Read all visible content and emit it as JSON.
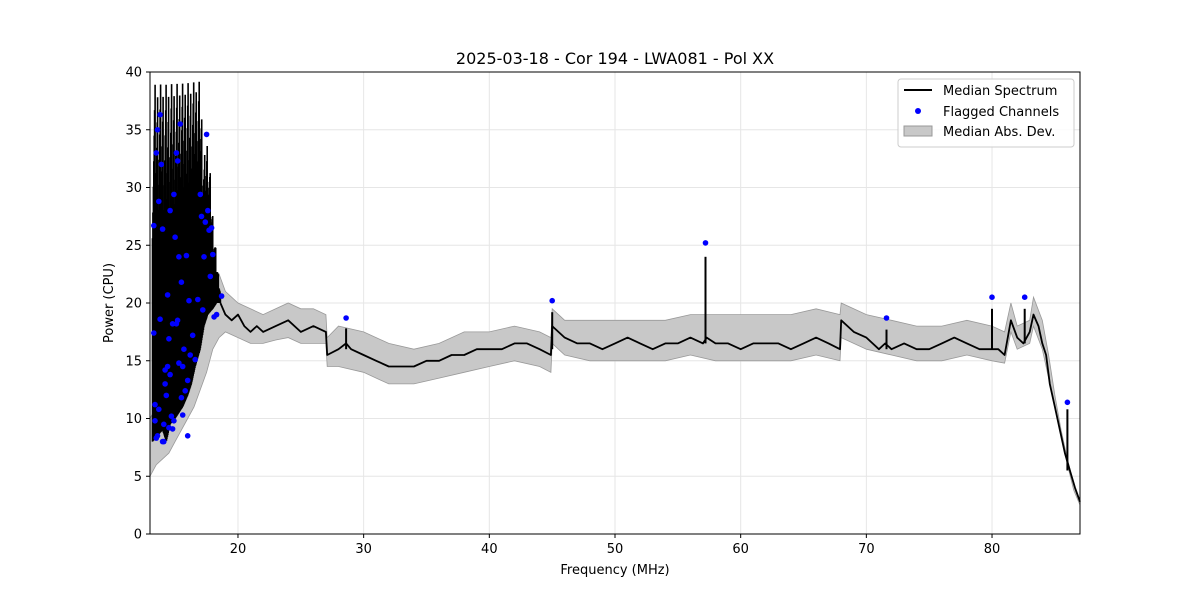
{
  "chart_data": {
    "type": "line",
    "title": "2025-03-18 - Cor 194 - LWA081 - Pol XX",
    "xlabel": "Frequency (MHz)",
    "ylabel": "Power (CPU)",
    "xlim": [
      13,
      87
    ],
    "ylim": [
      0,
      40
    ],
    "xticks": [
      20,
      30,
      40,
      50,
      60,
      70,
      80
    ],
    "yticks": [
      0,
      5,
      10,
      15,
      20,
      25,
      30,
      35,
      40
    ],
    "grid": true,
    "legend_position": "top-right",
    "legend": [
      "Median Spectrum",
      "Flagged Channels",
      "Median Abs. Dev."
    ],
    "colors": {
      "median": "#000000",
      "flagged": "#0000ff",
      "band": "#c8c8c8",
      "band_edge": "#999999"
    },
    "series": [
      {
        "name": "Median Spectrum",
        "kind": "line",
        "x": [
          18.6,
          19.0,
          19.5,
          20.0,
          20.5,
          21.0,
          21.5,
          22.0,
          23.0,
          24.0,
          25.0,
          26.0,
          27.0,
          27.1,
          28.0,
          28.6,
          29.0,
          30.0,
          31.0,
          32.0,
          33.0,
          34.0,
          35.0,
          36.0,
          37.0,
          38.0,
          39.0,
          40.0,
          41.0,
          42.0,
          43.0,
          44.0,
          44.9,
          45.0,
          46.0,
          47.0,
          48.0,
          49.0,
          50.0,
          51.0,
          52.0,
          53.0,
          54.0,
          55.0,
          56.0,
          57.0,
          57.3,
          58.0,
          59.0,
          60.0,
          61.0,
          62.0,
          63.0,
          64.0,
          65.0,
          66.0,
          67.0,
          67.9,
          68.0,
          69.0,
          70.0,
          71.0,
          71.5,
          72.0,
          73.0,
          74.0,
          75.0,
          76.0,
          77.0,
          78.0,
          79.0,
          80.0,
          80.5,
          81.0,
          81.5,
          82.0,
          82.5,
          83.0,
          83.3,
          83.7,
          84.0,
          84.3,
          84.6,
          85.0,
          85.4,
          85.8,
          86.2,
          86.6,
          87.0
        ],
        "y": [
          20.0,
          19.0,
          18.5,
          19.0,
          18.0,
          17.5,
          18.0,
          17.5,
          18.0,
          18.5,
          17.5,
          18.0,
          17.5,
          15.5,
          16.0,
          16.5,
          16.0,
          15.5,
          15.0,
          14.5,
          14.5,
          14.5,
          15.0,
          15.0,
          15.5,
          15.5,
          16.0,
          16.0,
          16.0,
          16.5,
          16.5,
          16.0,
          15.5,
          18.0,
          17.0,
          16.5,
          16.5,
          16.0,
          16.5,
          17.0,
          16.5,
          16.0,
          16.5,
          16.5,
          17.0,
          16.5,
          17.0,
          16.5,
          16.5,
          16.0,
          16.5,
          16.5,
          16.5,
          16.0,
          16.5,
          17.0,
          16.5,
          16.0,
          18.5,
          17.5,
          17.0,
          16.0,
          16.5,
          16.0,
          16.5,
          16.0,
          16.0,
          16.5,
          17.0,
          16.5,
          16.0,
          16.0,
          16.0,
          15.5,
          18.5,
          17.0,
          16.5,
          17.5,
          19.0,
          18.0,
          16.5,
          15.5,
          13.0,
          11.0,
          9.0,
          7.0,
          5.5,
          4.0,
          2.8
        ]
      },
      {
        "name": "Median Spectrum spikes",
        "kind": "spikes",
        "x": [
          28.6,
          45.0,
          57.2,
          71.6,
          80.0,
          82.6,
          86.0
        ],
        "y0": [
          16.0,
          16.0,
          16.5,
          16.0,
          16.0,
          16.5,
          5.5
        ],
        "y": [
          17.8,
          19.2,
          24.0,
          17.7,
          19.5,
          19.5,
          10.8
        ]
      },
      {
        "name": "Median Spectrum low-frequency RFI",
        "kind": "band_lines",
        "x": [
          13.2,
          13.6,
          14.0,
          14.3,
          14.6,
          15.0,
          15.3,
          15.6,
          16.0,
          16.3,
          16.6,
          17.0,
          17.3,
          17.6,
          18.0,
          18.3,
          18.6
        ],
        "low": [
          8.0,
          8.5,
          9.0,
          8.0,
          9.5,
          10.0,
          10.5,
          11.0,
          12.0,
          13.0,
          14.5,
          16.0,
          18.0,
          19.0,
          19.5,
          20.0,
          20.0
        ],
        "high": [
          40,
          40,
          40,
          40,
          40,
          40,
          40,
          40,
          40,
          40,
          40,
          40,
          33,
          35,
          28,
          24,
          21
        ]
      },
      {
        "name": "Median Abs. Dev.",
        "kind": "band",
        "x": [
          13.0,
          13.5,
          14.0,
          14.5,
          15.0,
          15.5,
          16.0,
          16.5,
          17.0,
          17.5,
          18.0,
          18.5,
          19.0,
          20.0,
          21.0,
          22.0,
          23.0,
          24.0,
          25.0,
          26.0,
          27.0,
          27.1,
          28.0,
          30.0,
          32.0,
          34.0,
          36.0,
          38.0,
          40.0,
          42.0,
          44.0,
          44.9,
          45.0,
          46.0,
          48.0,
          50.0,
          52.0,
          54.0,
          56.0,
          58.0,
          60.0,
          62.0,
          64.0,
          66.0,
          67.9,
          68.0,
          70.0,
          72.0,
          74.0,
          76.0,
          78.0,
          80.0,
          81.0,
          81.5,
          82.0,
          83.0,
          83.3,
          84.0,
          84.5,
          85.0,
          85.5,
          86.0,
          86.5,
          87.0
        ],
        "lower": [
          5.0,
          6.0,
          6.5,
          7.0,
          8.0,
          9.0,
          10.0,
          11.0,
          12.5,
          14.0,
          16.0,
          17.0,
          17.5,
          17.0,
          16.5,
          16.5,
          16.8,
          17.0,
          16.5,
          16.5,
          16.5,
          14.5,
          14.5,
          14.0,
          13.0,
          13.0,
          13.5,
          14.0,
          14.5,
          15.0,
          14.5,
          14.0,
          16.5,
          15.5,
          15.0,
          15.0,
          15.0,
          15.0,
          15.5,
          15.0,
          15.0,
          15.0,
          15.0,
          15.5,
          15.0,
          17.0,
          16.0,
          15.5,
          15.0,
          15.0,
          15.5,
          15.0,
          14.8,
          17.5,
          16.0,
          16.5,
          18.0,
          16.0,
          13.5,
          11.0,
          8.5,
          6.0,
          3.8,
          2.5
        ],
        "upper": [
          10.0,
          11.0,
          12.0,
          13.0,
          14.0,
          15.0,
          16.0,
          17.0,
          18.5,
          20.0,
          21.5,
          22.5,
          21.0,
          20.0,
          19.5,
          19.0,
          19.5,
          20.0,
          19.5,
          19.5,
          19.0,
          17.0,
          18.0,
          17.5,
          16.5,
          16.0,
          16.5,
          17.5,
          17.5,
          18.0,
          17.5,
          17.0,
          19.5,
          18.5,
          18.5,
          18.5,
          18.5,
          18.5,
          19.0,
          19.0,
          19.0,
          19.0,
          19.0,
          19.5,
          19.0,
          20.0,
          19.0,
          18.5,
          18.0,
          18.0,
          18.5,
          18.0,
          17.5,
          20.0,
          18.0,
          18.5,
          20.5,
          18.5,
          15.5,
          12.0,
          9.0,
          6.5,
          4.3,
          2.8
        ]
      },
      {
        "name": "Flagged Channels",
        "kind": "scatter",
        "x": [
          13.3,
          13.4,
          13.5,
          13.5,
          13.6,
          13.7,
          13.8,
          13.8,
          13.9,
          14.0,
          14.0,
          14.1,
          14.2,
          14.2,
          14.3,
          14.4,
          14.4,
          14.5,
          14.6,
          14.6,
          14.7,
          14.8,
          14.9,
          14.9,
          15.0,
          15.1,
          15.1,
          15.2,
          15.3,
          15.3,
          15.4,
          15.5,
          15.5,
          15.6,
          15.7,
          15.8,
          15.9,
          16.0,
          16.1,
          16.2,
          16.4,
          16.6,
          16.8,
          17.0,
          17.1,
          17.2,
          17.3,
          17.4,
          17.5,
          17.6,
          17.7,
          17.8,
          17.9,
          18.0,
          18.1,
          18.3,
          18.7,
          13.3,
          13.4,
          13.6,
          13.7,
          14.1,
          14.5,
          14.8,
          15.2,
          15.6,
          16.0,
          28.6,
          45.0,
          57.2,
          71.6,
          80.0,
          82.6,
          86.0
        ],
        "y": [
          26.7,
          11.2,
          8.3,
          33.0,
          35.0,
          28.8,
          36.3,
          18.6,
          32.0,
          8.0,
          26.4,
          9.5,
          14.2,
          13.0,
          12.0,
          20.7,
          14.5,
          9.2,
          28.0,
          13.8,
          10.2,
          18.2,
          29.4,
          9.8,
          25.7,
          18.2,
          33.0,
          32.3,
          14.8,
          24.0,
          35.5,
          21.8,
          11.8,
          10.3,
          16.0,
          12.4,
          24.1,
          13.3,
          20.2,
          15.5,
          17.2,
          15.1,
          20.3,
          29.4,
          27.5,
          19.4,
          24.0,
          27.0,
          34.6,
          28.0,
          26.3,
          22.3,
          26.5,
          24.2,
          18.8,
          19.0,
          20.6,
          17.4,
          9.8,
          8.5,
          10.8,
          8.0,
          16.9,
          9.1,
          18.5,
          14.5,
          8.5,
          18.7,
          20.2,
          25.2,
          18.7,
          20.5,
          20.5,
          11.4
        ]
      }
    ]
  }
}
